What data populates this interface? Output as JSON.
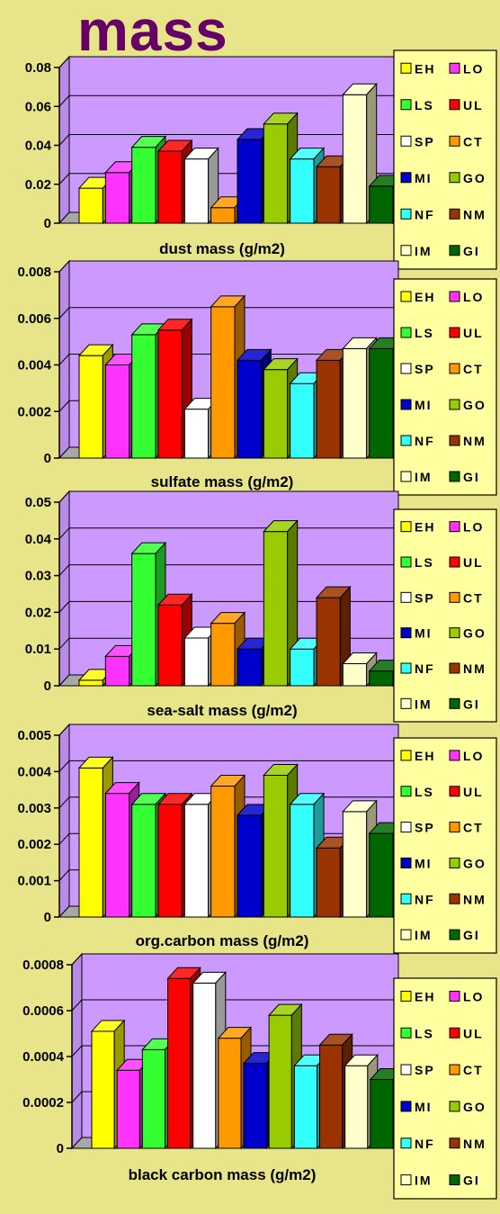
{
  "page": {
    "title": "mass"
  },
  "legend_colors": {
    "EH": "#ffff00",
    "LO": "#ff33ff",
    "LS": "#33ff33",
    "UL": "#ff0000",
    "SP": "#ffffff",
    "CT": "#ff9900",
    "MI": "#0000cc",
    "GO": "#99cc00",
    "NF": "#33ffff",
    "NM": "#993300",
    "IM": "#ffffcc",
    "GI": "#006600"
  },
  "legend_rows": [
    [
      "EH",
      "LO"
    ],
    [
      "LS",
      "UL"
    ],
    [
      "SP",
      "CT"
    ],
    [
      "MI",
      "GO"
    ],
    [
      "NF",
      "NM"
    ],
    [
      "IM",
      "GI"
    ]
  ],
  "chart_data": [
    {
      "type": "bar",
      "xlabel": "dust mass (g/m2)",
      "categories": [
        "EH",
        "LO",
        "LS",
        "UL",
        "SP",
        "CT",
        "MI",
        "GO",
        "NF",
        "NM",
        "IM",
        "GI"
      ],
      "values": [
        0.018,
        0.026,
        0.039,
        0.037,
        0.033,
        0.008,
        0.043,
        0.051,
        0.033,
        0.029,
        0.066,
        0.019
      ],
      "ylim": [
        0,
        0.08
      ],
      "yticks": [
        "0",
        "0.02",
        "0.04",
        "0.06",
        "0.08"
      ],
      "grid": true,
      "legend": "right"
    },
    {
      "type": "bar",
      "xlabel": "sulfate mass (g/m2)",
      "categories": [
        "EH",
        "LO",
        "LS",
        "UL",
        "SP",
        "CT",
        "MI",
        "GO",
        "NF",
        "NM",
        "IM",
        "GI"
      ],
      "values": [
        0.0044,
        0.004,
        0.0053,
        0.0055,
        0.0021,
        0.0065,
        0.0042,
        0.0038,
        0.0032,
        0.0042,
        0.0047,
        0.0047
      ],
      "ylim": [
        0,
        0.008
      ],
      "yticks": [
        "0",
        "0.002",
        "0.004",
        "0.006",
        "0.008"
      ],
      "grid": true,
      "legend": "right"
    },
    {
      "type": "bar",
      "xlabel": "sea-salt mass (g/m2)",
      "categories": [
        "EH",
        "LO",
        "LS",
        "UL",
        "SP",
        "CT",
        "MI",
        "GO",
        "NF",
        "NM",
        "IM",
        "GI"
      ],
      "values": [
        0.0015,
        0.008,
        0.036,
        0.022,
        0.013,
        0.017,
        0.01,
        0.042,
        0.01,
        0.024,
        0.006,
        0.004
      ],
      "ylim": [
        0,
        0.05
      ],
      "yticks": [
        "0",
        "0.01",
        "0.02",
        "0.03",
        "0.04",
        "0.05"
      ],
      "grid": true,
      "legend": "right"
    },
    {
      "type": "bar",
      "xlabel": "org.carbon mass (g/m2)",
      "categories": [
        "EH",
        "LO",
        "LS",
        "UL",
        "SP",
        "CT",
        "MI",
        "GO",
        "NF",
        "NM",
        "IM",
        "GI"
      ],
      "values": [
        0.0041,
        0.0034,
        0.0031,
        0.0031,
        0.0031,
        0.0036,
        0.0028,
        0.0039,
        0.0031,
        0.0019,
        0.0029,
        0.0023
      ],
      "ylim": [
        0,
        0.005
      ],
      "yticks": [
        "0",
        "0.001",
        "0.002",
        "0.003",
        "0.004",
        "0.005"
      ],
      "grid": true,
      "legend": "right"
    },
    {
      "type": "bar",
      "xlabel": "black carbon mass (g/m2)",
      "categories": [
        "EH",
        "LO",
        "LS",
        "UL",
        "SP",
        "CT",
        "MI",
        "GO",
        "NF",
        "NM",
        "IM",
        "GI"
      ],
      "values": [
        0.00051,
        0.00034,
        0.00043,
        0.00074,
        0.00072,
        0.00048,
        0.00037,
        0.00058,
        0.00036,
        0.00045,
        0.00036,
        0.0003
      ],
      "ylim": [
        0,
        0.0008
      ],
      "yticks": [
        "0",
        "0.0002",
        "0.0004",
        "0.0006",
        "0.0008"
      ],
      "grid": true,
      "legend": "right"
    }
  ]
}
